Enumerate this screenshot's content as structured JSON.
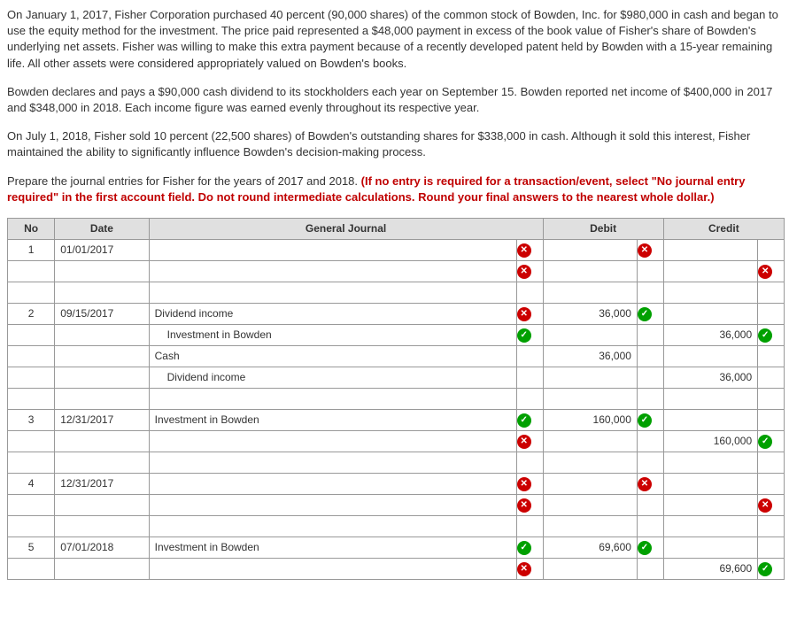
{
  "problem": {
    "p1": "On January 1, 2017, Fisher Corporation purchased 40 percent (90,000 shares) of the common stock of Bowden, Inc. for $980,000 in cash and began to use the equity method for the investment. The price paid represented a $48,000 payment in excess of the book value of Fisher's share of Bowden's underlying net assets. Fisher was willing to make this extra payment because of a recently developed patent held by Bowden with a 15-year remaining life. All other assets were considered appropriately valued on Bowden's books.",
    "p2": "Bowden declares and pays a $90,000 cash dividend to its stockholders each year on September 15. Bowden reported net income of $400,000 in 2017 and $348,000 in 2018. Each income figure was earned evenly throughout its respective year.",
    "p3": "On July 1, 2018, Fisher sold 10 percent (22,500 shares) of Bowden's outstanding shares for $338,000 in cash. Although it sold this interest, Fisher maintained the ability to significantly influence Bowden's decision-making process.",
    "p4a": "Prepare the journal entries for Fisher for the years of 2017 and 2018. ",
    "p4b": "(If no entry is required for a transaction/event, select \"No journal entry required\" in the first account field. Do not round intermediate calculations. Round your final answers to the nearest whole dollar.)"
  },
  "headers": {
    "no": "No",
    "date": "Date",
    "gj": "General Journal",
    "debit": "Debit",
    "credit": "Credit"
  },
  "rows": [
    {
      "no": "1",
      "date": "01/01/2017",
      "gj": "",
      "mark1": "x",
      "debit": "",
      "dmark": "x",
      "credit": "",
      "cmark": ""
    },
    {
      "no": "",
      "date": "",
      "gj": "",
      "indent": 1,
      "mark1": "x",
      "debit": "",
      "dmark": "",
      "credit": "",
      "cmark": "x"
    },
    {
      "blank": true
    },
    {
      "no": "2",
      "date": "09/15/2017",
      "gj": "Dividend income",
      "mark1": "x",
      "debit": "36,000",
      "dmark": "check",
      "credit": "",
      "cmark": ""
    },
    {
      "no": "",
      "date": "",
      "gj": "Investment in Bowden",
      "indent": 1,
      "mark1": "check",
      "debit": "",
      "dmark": "",
      "credit": "36,000",
      "cmark": "check"
    },
    {
      "no": "",
      "date": "",
      "gj": "Cash",
      "mark1": "",
      "debit": "36,000",
      "dmark": "",
      "credit": "",
      "cmark": ""
    },
    {
      "no": "",
      "date": "",
      "gj": "Dividend income",
      "indent": 1,
      "mark1": "",
      "debit": "",
      "dmark": "",
      "credit": "36,000",
      "cmark": ""
    },
    {
      "blank": true
    },
    {
      "no": "3",
      "date": "12/31/2017",
      "gj": "Investment in Bowden",
      "mark1": "check",
      "debit": "160,000",
      "dmark": "check",
      "credit": "",
      "cmark": ""
    },
    {
      "no": "",
      "date": "",
      "gj": "",
      "indent": 1,
      "mark1": "x",
      "debit": "",
      "dmark": "",
      "credit": "160,000",
      "cmark": "check"
    },
    {
      "blank": true
    },
    {
      "no": "4",
      "date": "12/31/2017",
      "gj": "",
      "mark1": "x",
      "debit": "",
      "dmark": "x",
      "credit": "",
      "cmark": ""
    },
    {
      "no": "",
      "date": "",
      "gj": "",
      "indent": 1,
      "mark1": "x",
      "debit": "",
      "dmark": "",
      "credit": "",
      "cmark": "x"
    },
    {
      "blank": true
    },
    {
      "no": "5",
      "date": "07/01/2018",
      "gj": "Investment in Bowden",
      "mark1": "check",
      "debit": "69,600",
      "dmark": "check",
      "credit": "",
      "cmark": ""
    },
    {
      "no": "",
      "date": "",
      "gj": "",
      "indent": 1,
      "mark1": "x",
      "debit": "",
      "dmark": "",
      "credit": "69,600",
      "cmark": "check"
    }
  ]
}
